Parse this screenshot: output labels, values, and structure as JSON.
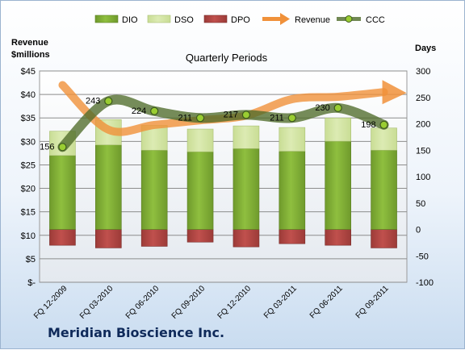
{
  "company": "Meridian Bioscience Inc.",
  "colors": {
    "dio": "#8fbf3f",
    "dso": "#dcebb3",
    "dpo": "#c0504d",
    "revenue": "#f0913a",
    "ccc": "#4f6b2a"
  },
  "chart_data": {
    "type": "bar",
    "title": "Quarterly Periods",
    "y_left_label": [
      "Revenue",
      "$millions"
    ],
    "y_right_label": "Days",
    "y_left_range": [
      0,
      45
    ],
    "y_left_ticks": [
      "$-",
      "$5",
      "$10",
      "$15",
      "$20",
      "$25",
      "$30",
      "$35",
      "$40",
      "$45"
    ],
    "y_right_range": [
      -100,
      300
    ],
    "y_right_ticks": [
      "-100",
      "-50",
      "0",
      "50",
      "100",
      "150",
      "200",
      "250",
      "300"
    ],
    "grid": true,
    "legend_position": "top",
    "categories": [
      "FQ 12-2009",
      "FQ 03-2010",
      "FQ 06-2010",
      "FQ 09-2010",
      "FQ 12-2010",
      "FQ 03-2011",
      "FQ 06-2011",
      "FQ 09-2011"
    ],
    "series": [
      {
        "name": "DIO",
        "axis": "right",
        "values": [
          140,
          160,
          150,
          147,
          153,
          148,
          167,
          150
        ]
      },
      {
        "name": "DSO",
        "axis": "right",
        "values": [
          46,
          48,
          47,
          43,
          43,
          45,
          44,
          42
        ]
      },
      {
        "name": "DPO",
        "axis": "right",
        "values": [
          -30,
          -35,
          -32,
          -24,
          -33,
          -27,
          -30,
          -35
        ]
      },
      {
        "name": "Revenue",
        "axis": "left",
        "values": [
          42,
          32.5,
          33.5,
          34.5,
          35.5,
          39,
          39.5,
          40.5
        ]
      },
      {
        "name": "CCC",
        "axis": "right",
        "values": [
          156,
          243,
          224,
          211,
          217,
          211,
          230,
          198
        ],
        "labels": [
          "156",
          "243",
          "224",
          "211",
          "217",
          "211",
          "230",
          "198"
        ]
      }
    ]
  }
}
